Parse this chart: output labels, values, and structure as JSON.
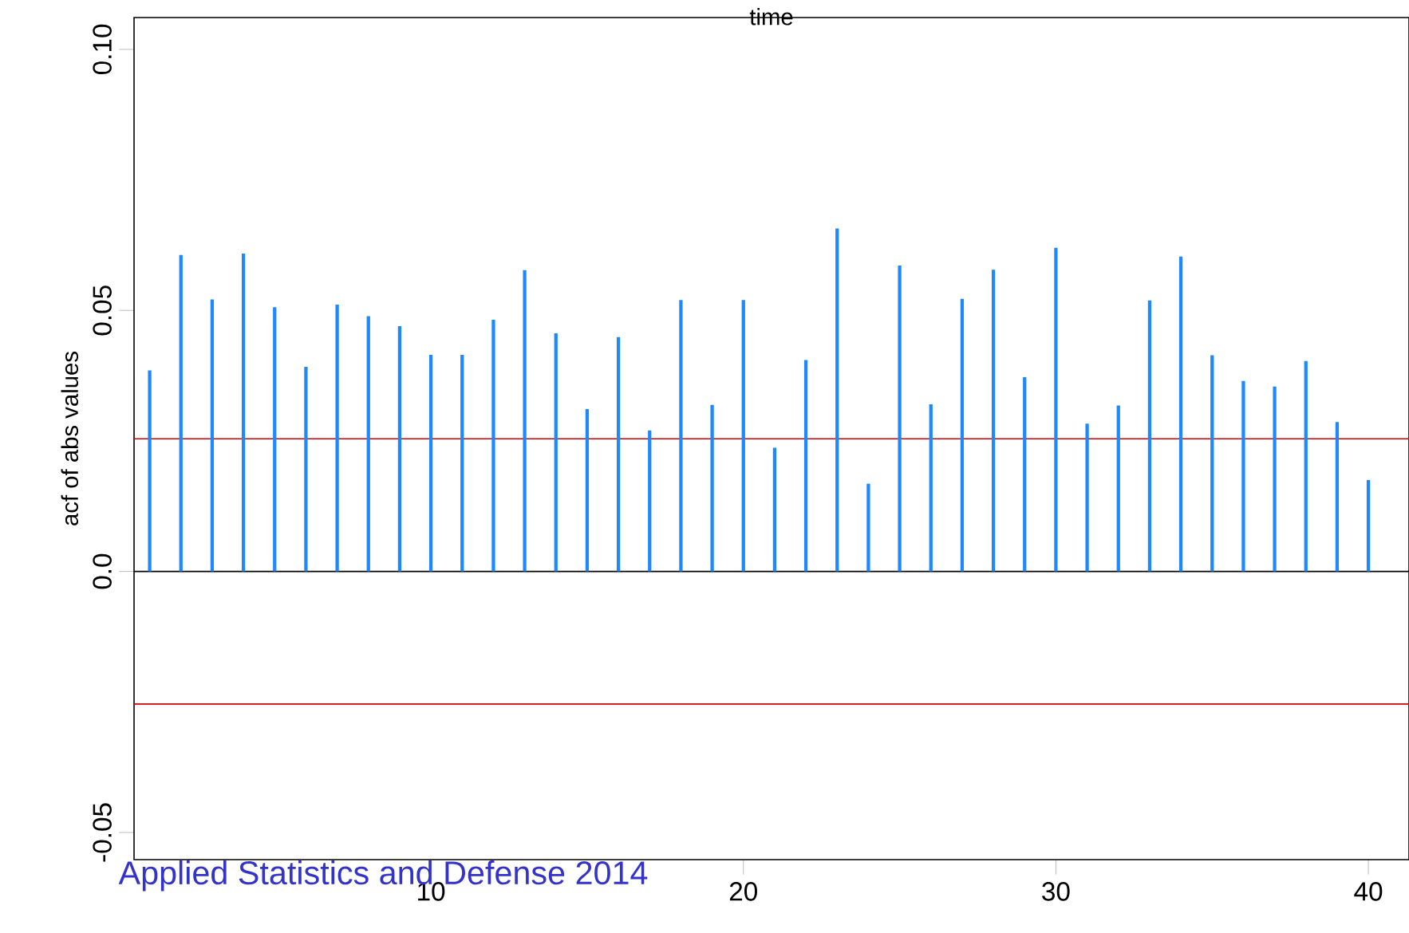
{
  "chart_data": {
    "type": "bar",
    "title": "time",
    "ylabel": "acf of abs values",
    "x": [
      1,
      2,
      3,
      4,
      5,
      6,
      7,
      8,
      9,
      10,
      11,
      12,
      13,
      14,
      15,
      16,
      17,
      18,
      19,
      20,
      21,
      22,
      23,
      24,
      25,
      26,
      27,
      28,
      29,
      30,
      31,
      32,
      33,
      34,
      35,
      36,
      37,
      38,
      39,
      40
    ],
    "values": [
      0.0385,
      0.0606,
      0.0521,
      0.0609,
      0.0506,
      0.0392,
      0.0511,
      0.0489,
      0.047,
      0.0415,
      0.0415,
      0.0482,
      0.0577,
      0.0456,
      0.0311,
      0.0449,
      0.027,
      0.052,
      0.0319,
      0.052,
      0.0237,
      0.0405,
      0.0657,
      0.0168,
      0.0586,
      0.032,
      0.0522,
      0.0578,
      0.0372,
      0.062,
      0.0283,
      0.0318,
      0.0519,
      0.0603,
      0.0414,
      0.0365,
      0.0354,
      0.0403,
      0.0286,
      0.0175
    ],
    "color": "#1e88ff",
    "xlim": [
      0.5,
      41.3
    ],
    "ylim": [
      -0.0552,
      0.1061
    ],
    "xticks": [
      10,
      20,
      30,
      40
    ],
    "yticks": [
      -0.05,
      {
        "value": 0,
        "label": "0.0"
      },
      0.05,
      {
        "value": 0.1,
        "label": "0.10"
      }
    ],
    "ref_lines": [
      {
        "axis": "y",
        "value": 0,
        "color": "#000000"
      },
      {
        "axis": "y",
        "value": 0.0254,
        "color": "#cc0000"
      },
      {
        "axis": "y",
        "value": -0.0254,
        "color": "#cc0000"
      }
    ],
    "annotations": [
      "Applied Statistics and Defense 2014"
    ]
  }
}
